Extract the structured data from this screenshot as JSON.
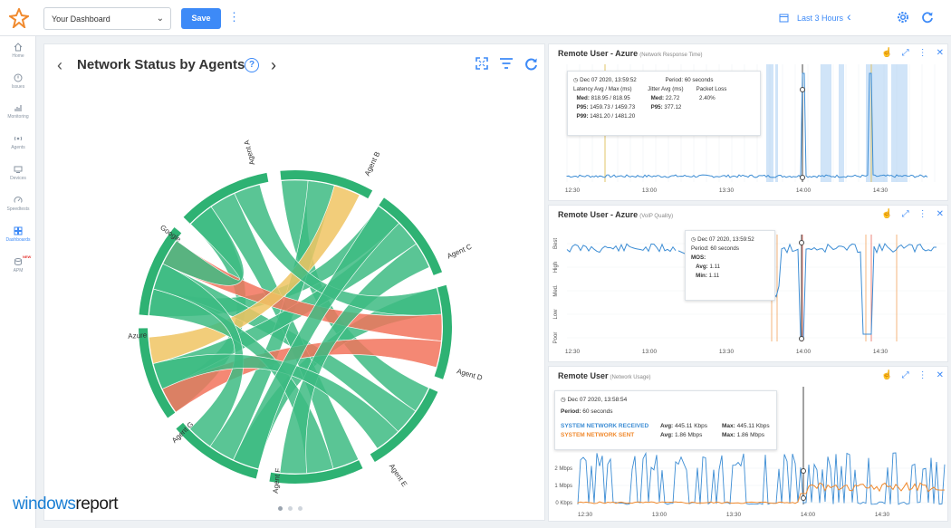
{
  "topbar": {
    "dashboard_select": "Your Dashboard",
    "save_label": "Save",
    "time_range": "Last 3 Hours"
  },
  "sidebar": {
    "items": [
      {
        "label": "Home",
        "icon": "home-icon"
      },
      {
        "label": "Issues",
        "icon": "issues-icon"
      },
      {
        "label": "Monitoring",
        "icon": "monitoring-icon"
      },
      {
        "label": "Agents",
        "icon": "agents-icon"
      },
      {
        "label": "Devices",
        "icon": "devices-icon"
      },
      {
        "label": "Speedtests",
        "icon": "speedtests-icon"
      },
      {
        "label": "Dashboards",
        "icon": "dashboard-icon",
        "active": true
      },
      {
        "label": "APM",
        "icon": "apm-icon",
        "badge": "NEW"
      }
    ]
  },
  "chord_card": {
    "title": "Network Status by Agents",
    "help": "?",
    "agents": [
      "Agent A",
      "Agent B",
      "Agent C",
      "Agent D",
      "Agent E",
      "Agent F",
      "Agent G",
      "Azure",
      "Google"
    ],
    "colors": {
      "good": "#3dbb83",
      "warning": "#f0c463",
      "error": "#f2735c",
      "ring": "#2eb273"
    }
  },
  "panel1": {
    "title": "Remote User - Azure",
    "subtitle": "(Network Response Time)",
    "x_ticks": [
      "12:30",
      "13:00",
      "13:30",
      "14:00",
      "14:30"
    ],
    "tooltip": {
      "timestamp": "Dec 07 2020, 13:59:52",
      "period": "Period: 60 seconds",
      "latency_header": "Latency Avg / Max (ms)",
      "jitter_header": "Jitter Avg (ms)",
      "loss_header": "Packet Loss",
      "med_label": "Med:",
      "med_latency": "818.95 / 818.95",
      "med_jitter": "22.72",
      "loss_value": "2.40%",
      "p95_label": "P95:",
      "p95_latency": "1459.73 / 1459.73",
      "p95_jitter": "377.12",
      "p99_label": "P99:",
      "p99_latency": "1481.20 / 1481.20"
    }
  },
  "panel2": {
    "title": "Remote User - Azure",
    "subtitle": "(VoIP Quality)",
    "y_ticks": [
      "Best",
      "High",
      "Med.",
      "Low",
      "Poor"
    ],
    "x_ticks": [
      "12:30",
      "13:00",
      "13:30",
      "14:00",
      "14:30"
    ],
    "tooltip": {
      "timestamp": "Dec 07 2020, 13:59:52",
      "period": "Period: 60 seconds",
      "mos": "MOS:",
      "avg": "Avg:",
      "avg_value": "1.11",
      "min": "Min:",
      "min_value": "1.11"
    }
  },
  "panel3": {
    "title": "Remote User",
    "subtitle": "(Network Usage)",
    "y_ticks": [
      "2 Mbps",
      "1 Mbps",
      "0 Kbps"
    ],
    "x_ticks": [
      "12:30",
      "13:00",
      "13:30",
      "14:00",
      "14:30"
    ],
    "series": [
      {
        "name": "SYSTEM NETWORK RECEIVED",
        "color": "#3d8dd4",
        "avg": "445.11 Kbps",
        "max": "445.11 Kbps"
      },
      {
        "name": "SYSTEM NETWORK SENT",
        "color": "#f08a2e",
        "avg": "1.86 Mbps",
        "max": "1.86 Mbps"
      }
    ],
    "tooltip": {
      "timestamp": "Dec 07 2020, 13:58:54",
      "period_label": "Period:",
      "period_value": "60 seconds",
      "avg_label": "Avg:",
      "max_label": "Max:"
    }
  },
  "watermark": {
    "part1": "windows",
    "part2": "report"
  }
}
